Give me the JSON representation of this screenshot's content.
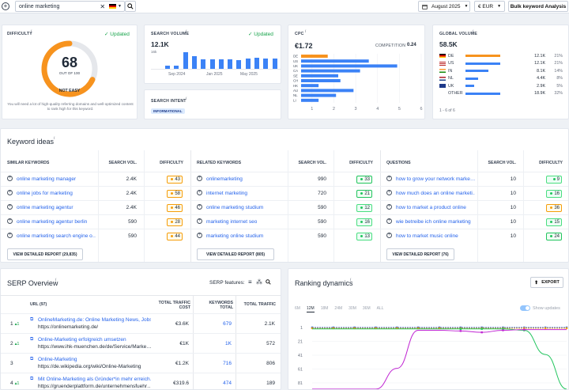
{
  "topbar": {
    "search_value": "online marketing",
    "date": "August 2025",
    "currency": "€ EUR",
    "bulk_button": "Bulk keyword Analysis"
  },
  "difficulty": {
    "label": "DIFFICULTY",
    "info": "i",
    "updated": "Updated",
    "score": "68",
    "out_of": "OUT OF 100",
    "rating": "NOT EASY",
    "description": "You will need a lot of high-quality referring domains and well-optimized content to rank high for this keyword.",
    "gauge_fraction": 0.68,
    "color": "#f7931e"
  },
  "search_volume": {
    "label": "SEARCH VOLUME",
    "info": "i",
    "updated": "Updated",
    "value": "12.1K",
    "axis_label": "16k",
    "ticks": [
      "Sep 2024",
      "Jan 2025",
      "May 2025"
    ],
    "bars": [
      0.2,
      0.2,
      0.95,
      0.75,
      0.55,
      0.55,
      0.55,
      0.55,
      0.5,
      0.6,
      0.62,
      0.6,
      0.6
    ]
  },
  "search_intent": {
    "label": "SEARCH INTENT",
    "info": "i",
    "badge": "INFORMATIONAL"
  },
  "cpc": {
    "label": "CPC",
    "info": "i",
    "value": "€1.72",
    "competition_label": "COMPETITION",
    "competition_value": "0.24",
    "chart_data": {
      "type": "bar",
      "orientation": "horizontal",
      "categories": [
        "DE",
        "US",
        "UK",
        "CA",
        "SE",
        "CH",
        "HK",
        "AU",
        "NL",
        "LI"
      ],
      "values": [
        1.72,
        3.6,
        4.9,
        3.2,
        2.2,
        2.3,
        1.3,
        2.9,
        2.1,
        1.3
      ],
      "xticks": [
        "1",
        "2",
        "3",
        "4",
        "5",
        "6"
      ],
      "xlim": [
        0.5,
        6
      ]
    }
  },
  "global_volume": {
    "label": "GLOBAL VOLUME",
    "info": "i",
    "value": "58.5K",
    "countries": [
      {
        "code": "DE",
        "value": "12.1K",
        "pct": "21%",
        "bar": 1.0,
        "color": "#f7931e"
      },
      {
        "code": "US",
        "value": "12.1K",
        "pct": "21%",
        "bar": 1.0,
        "color": "#3b82f6"
      },
      {
        "code": "IN",
        "value": "8.1K",
        "pct": "14%",
        "bar": 0.67,
        "color": "#3b82f6"
      },
      {
        "code": "NL",
        "value": "4.4K",
        "pct": "8%",
        "bar": 0.36,
        "color": "#3b82f6"
      },
      {
        "code": "UK",
        "value": "2.9K",
        "pct": "5%",
        "bar": 0.24,
        "color": "#3b82f6"
      },
      {
        "code": "OTHER",
        "value": "18.9K",
        "pct": "32%",
        "bar": 1.0,
        "color": "#3b82f6"
      }
    ],
    "pagination": "1 - 6 of 6"
  },
  "keyword_ideas": {
    "title": "Keyword ideas",
    "info": "i",
    "columns": [
      {
        "header": "SIMILAR KEYWORDS",
        "metric_header": "SEARCH VOL.",
        "kd_header": "DIFFICULTY",
        "rows": [
          {
            "kw": "online marketing manager",
            "vol": "2.4K",
            "kd": "43",
            "kd_class": "kd-o",
            "dot": "#f59e0b"
          },
          {
            "kw": "online jobs for marketing",
            "vol": "2.4K",
            "kd": "58",
            "kd_class": "kd-o",
            "dot": "#f59e0b"
          },
          {
            "kw": "online marketing agentur",
            "vol": "2.4K",
            "kd": "46",
            "kd_class": "kd-o",
            "dot": "#f59e0b"
          },
          {
            "kw": "online marketing agentur berlin",
            "vol": "590",
            "kd": "28",
            "kd_class": "kd-o",
            "dot": "#f59e0b"
          },
          {
            "kw": "online marketing search engine o…",
            "vol": "590",
            "kd": "44",
            "kd_class": "kd-o",
            "dot": "#f59e0b"
          }
        ],
        "report_button": "VIEW DETAILED REPORT (29,835)"
      },
      {
        "header": "RELATED KEYWORDS",
        "metric_header": "SEARCH VOL.",
        "kd_header": "DIFFICULTY",
        "rows": [
          {
            "kw": "onlinemarketing",
            "vol": "990",
            "kd": "33",
            "kd_class": "kd-g",
            "dot": "#22c55e"
          },
          {
            "kw": "internet marketing",
            "vol": "720",
            "kd": "21",
            "kd_class": "kd-g",
            "dot": "#22c55e"
          },
          {
            "kw": "online marketing studium",
            "vol": "590",
            "kd": "12",
            "kd_class": "kd-g2",
            "dot": "#22c55e"
          },
          {
            "kw": "marketing internet seo",
            "vol": "590",
            "kd": "16",
            "kd_class": "kd-g2",
            "dot": "#22c55e"
          },
          {
            "kw": "marketing online studium",
            "vol": "590",
            "kd": "13",
            "kd_class": "kd-g2",
            "dot": "#22c55e"
          }
        ],
        "report_button": "VIEW DETAILED REPORT (805)"
      },
      {
        "header": "QUESTIONS",
        "metric_header": "SEARCH VOL.",
        "kd_header": "DIFFICULTY",
        "rows": [
          {
            "kw": "how to grow your network marke…",
            "vol": "10",
            "kd": "9",
            "kd_class": "kd-g2",
            "dot": "#22c55e"
          },
          {
            "kw": "how much does an online marketi…",
            "vol": "10",
            "kd": "16",
            "kd_class": "kd-g2",
            "dot": "#22c55e"
          },
          {
            "kw": "how to market a product online",
            "vol": "10",
            "kd": "36",
            "kd_class": "kd-o",
            "dot": "#f59e0b"
          },
          {
            "kw": "wie betreibe ich online marketing",
            "vol": "10",
            "kd": "15",
            "kd_class": "kd-g2",
            "dot": "#22c55e"
          },
          {
            "kw": "how to market music online",
            "vol": "10",
            "kd": "24",
            "kd_class": "kd-g",
            "dot": "#22c55e"
          }
        ],
        "report_button": "VIEW DETAILED REPORT (76)"
      }
    ]
  },
  "serp": {
    "title": "SERP Overview",
    "info": "i",
    "features_label": "SERP features:",
    "headers": {
      "url": "URL (97)",
      "cost": "TOTAL TRAFFIC COST",
      "keywords": "KEYWORDS TOTAL",
      "traffic": "TOTAL TRAFFIC"
    },
    "rows": [
      {
        "pos": "1",
        "change": "1",
        "title": "OnlineMarketing.de: Online Marketing News, Jobs …",
        "url": "https://onlinemarketing.de/",
        "cost": "€3.6K",
        "keywords": "679",
        "traffic": "2.1K"
      },
      {
        "pos": "2",
        "change": "1",
        "title": "Online-Marketing erfolgreich umsetzen",
        "url": "https://www.ihk-muenchen.de/de/Service/Marke…",
        "cost": "€1K",
        "keywords": "1K",
        "traffic": "572"
      },
      {
        "pos": "3",
        "change": "",
        "title": "Online-Marketing",
        "url": "https://de.wikipedia.org/wiki/Online-Marketing",
        "cost": "€1.2K",
        "keywords": "716",
        "traffic": "806"
      },
      {
        "pos": "4",
        "change": "1",
        "title": "Mit Online-Marketing als Gründer*in mehr erreich…",
        "url": "https://gruenderplattform.de/unternehmensfuehr…",
        "cost": "€319.6",
        "keywords": "474",
        "traffic": "189"
      }
    ]
  },
  "ranking": {
    "title": "Ranking dynamics",
    "info": "i",
    "export": "EXPORT",
    "ranges": [
      "6M",
      "12M",
      "18M",
      "24M",
      "30M",
      "36M",
      "ALL"
    ],
    "active_range": "12M",
    "show_updates": "Show updates",
    "chart_data": {
      "type": "line",
      "yticks": [
        "1",
        "21",
        "41",
        "61",
        "81"
      ],
      "ylim": [
        1,
        81
      ],
      "x": [
        0,
        1,
        2,
        3,
        4,
        5,
        6,
        7,
        8,
        9,
        10,
        11,
        12
      ],
      "series": [
        {
          "color": "#2563eb",
          "values": [
            1,
            1,
            1,
            1,
            1,
            1,
            1,
            1,
            1,
            1,
            1,
            1,
            1
          ]
        },
        {
          "color": "#f59e0b",
          "values": [
            2,
            2,
            2,
            2,
            2,
            2,
            2,
            2,
            2,
            2,
            2,
            2,
            2
          ]
        },
        {
          "color": "#22c55e",
          "values": [
            3,
            3,
            3,
            3,
            3,
            3,
            3,
            3,
            3,
            3,
            5,
            40,
            90
          ]
        },
        {
          "color": "#c026d3",
          "values": [
            90,
            90,
            90,
            90,
            60,
            5,
            5,
            6,
            8,
            5,
            4,
            4,
            4
          ]
        }
      ]
    }
  }
}
